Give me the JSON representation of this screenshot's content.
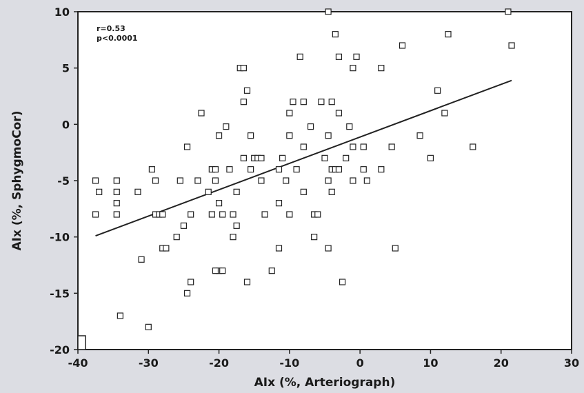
{
  "chart_data": {
    "type": "scatter",
    "xlabel": "AIx (%, Arteriograph)",
    "ylabel": "AIx (%, SphygmoCor)",
    "xlim": [
      -40,
      30
    ],
    "ylim": [
      -20,
      10
    ],
    "xticks": [
      -40,
      -30,
      -20,
      -10,
      0,
      10,
      20,
      30
    ],
    "yticks": [
      10,
      5,
      0,
      -5,
      -10,
      -15,
      -20
    ],
    "annotations": [
      "r=0.53",
      "p<0.0001"
    ],
    "grid": false,
    "legend": "none",
    "regression_line": {
      "x": [
        -37.5,
        21.5
      ],
      "y": [
        -9.9,
        3.9
      ]
    },
    "series": [
      {
        "values": [
          [
            -37.5,
            -5
          ],
          [
            -37.5,
            -8
          ],
          [
            -37,
            -6
          ],
          [
            -34.5,
            -5
          ],
          [
            -34.5,
            -6
          ],
          [
            -34.5,
            -7
          ],
          [
            -34.5,
            -8
          ],
          [
            -34,
            -17
          ],
          [
            -31.5,
            -6
          ],
          [
            -31,
            -12
          ],
          [
            -30,
            -18
          ],
          [
            -29.5,
            -4
          ],
          [
            -29,
            -5
          ],
          [
            -29,
            -8
          ],
          [
            -28.5,
            -8
          ],
          [
            -28,
            -8
          ],
          [
            -28,
            -11
          ],
          [
            -27.5,
            -11
          ],
          [
            -26,
            -10
          ],
          [
            -25.5,
            -5
          ],
          [
            -25,
            -9
          ],
          [
            -24.5,
            -15
          ],
          [
            -24.5,
            -2
          ],
          [
            -24,
            -14
          ],
          [
            -24,
            -8
          ],
          [
            -23,
            -5
          ],
          [
            -22.5,
            1
          ],
          [
            -21.5,
            -6
          ],
          [
            -21,
            -4
          ],
          [
            -21,
            -8
          ],
          [
            -20.5,
            -4
          ],
          [
            -20.5,
            -5
          ],
          [
            -20,
            -1
          ],
          [
            -20,
            -7
          ],
          [
            -20,
            -13
          ],
          [
            -20.5,
            -13
          ],
          [
            -19.5,
            -8
          ],
          [
            -19.5,
            -13
          ],
          [
            -19,
            -0.2
          ],
          [
            -18.5,
            -4
          ],
          [
            -18,
            -8
          ],
          [
            -18,
            -10
          ],
          [
            -17.5,
            -9
          ],
          [
            -17.5,
            -6
          ],
          [
            -17,
            5
          ],
          [
            -16.5,
            5
          ],
          [
            -16.5,
            2
          ],
          [
            -16.5,
            -3
          ],
          [
            -16,
            3
          ],
          [
            -16,
            -14
          ],
          [
            -15.5,
            -1
          ],
          [
            -15.5,
            -4
          ],
          [
            -15,
            -3
          ],
          [
            -14.5,
            -3
          ],
          [
            -14,
            -5
          ],
          [
            -14,
            -3
          ],
          [
            -13.5,
            -8
          ],
          [
            -12.5,
            -13
          ],
          [
            -11.5,
            -11
          ],
          [
            -11.5,
            -7
          ],
          [
            -11.5,
            -4
          ],
          [
            -11,
            -3
          ],
          [
            -10.5,
            -5
          ],
          [
            -10,
            1
          ],
          [
            -10,
            -1
          ],
          [
            -10,
            -8
          ],
          [
            -9.5,
            2
          ],
          [
            -9,
            -4
          ],
          [
            -8.5,
            6
          ],
          [
            -8,
            -6
          ],
          [
            -8,
            -2
          ],
          [
            -8,
            2
          ],
          [
            -7,
            -0.2
          ],
          [
            -6.5,
            -10
          ],
          [
            -6.5,
            -8
          ],
          [
            -6,
            -8
          ],
          [
            -5.5,
            2
          ],
          [
            -5,
            -3
          ],
          [
            -4.5,
            -5
          ],
          [
            -4.5,
            -11
          ],
          [
            -4.5,
            10
          ],
          [
            -4.5,
            -1
          ],
          [
            -4,
            2
          ],
          [
            -4,
            -6
          ],
          [
            -4,
            -4
          ],
          [
            -3.5,
            8
          ],
          [
            -3.5,
            -4
          ],
          [
            -3,
            6
          ],
          [
            -3,
            1
          ],
          [
            -3,
            -4
          ],
          [
            -2.5,
            -14
          ],
          [
            -2,
            -3
          ],
          [
            -1.5,
            -0.2
          ],
          [
            -1,
            5
          ],
          [
            -1,
            -2
          ],
          [
            -1,
            -5
          ],
          [
            -0.5,
            6
          ],
          [
            0.5,
            -2
          ],
          [
            0.5,
            -4
          ],
          [
            1,
            -5
          ],
          [
            3,
            -4
          ],
          [
            3,
            5
          ],
          [
            4.5,
            -2
          ],
          [
            5,
            -11
          ],
          [
            6,
            7
          ],
          [
            8.5,
            -1
          ],
          [
            10,
            -3
          ],
          [
            11,
            3
          ],
          [
            12,
            1
          ],
          [
            12.5,
            8
          ],
          [
            16,
            -2
          ],
          [
            21,
            10
          ],
          [
            21.5,
            7
          ]
        ]
      }
    ]
  }
}
